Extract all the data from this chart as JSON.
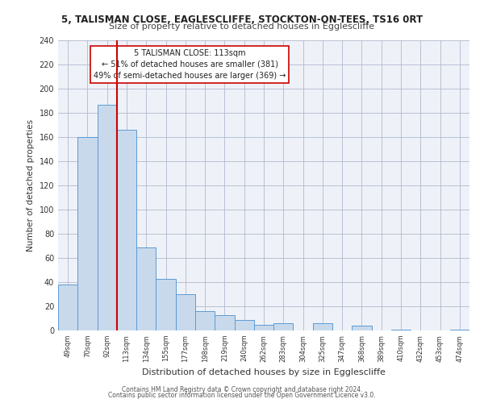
{
  "title1": "5, TALISMAN CLOSE, EAGLESCLIFFE, STOCKTON-ON-TEES, TS16 0RT",
  "title2": "Size of property relative to detached houses in Egglescliffe",
  "xlabel": "Distribution of detached houses by size in Egglescliffe",
  "ylabel": "Number of detached properties",
  "annotation_line1": "5 TALISMAN CLOSE: 113sqm",
  "annotation_line2": "← 51% of detached houses are smaller (381)",
  "annotation_line3": "49% of semi-detached houses are larger (369) →",
  "bar_labels": [
    "49sqm",
    "70sqm",
    "92sqm",
    "113sqm",
    "134sqm",
    "155sqm",
    "177sqm",
    "198sqm",
    "219sqm",
    "240sqm",
    "262sqm",
    "283sqm",
    "304sqm",
    "325sqm",
    "347sqm",
    "368sqm",
    "389sqm",
    "410sqm",
    "432sqm",
    "453sqm",
    "474sqm"
  ],
  "bar_values": [
    38,
    160,
    187,
    166,
    69,
    43,
    30,
    16,
    13,
    9,
    5,
    6,
    0,
    6,
    0,
    4,
    0,
    1,
    0,
    0,
    1
  ],
  "bar_color": "#c9d9ec",
  "bar_edge_color": "#5b9bd5",
  "vline_x": 3,
  "vline_color": "#cc0000",
  "ylim": [
    0,
    240
  ],
  "yticks": [
    0,
    20,
    40,
    60,
    80,
    100,
    120,
    140,
    160,
    180,
    200,
    220,
    240
  ],
  "bg_color": "#eef2f8",
  "plot_bg_color": "#eef2f8",
  "footer1": "Contains HM Land Registry data © Crown copyright and database right 2024.",
  "footer2": "Contains public sector information licensed under the Open Government Licence v3.0."
}
